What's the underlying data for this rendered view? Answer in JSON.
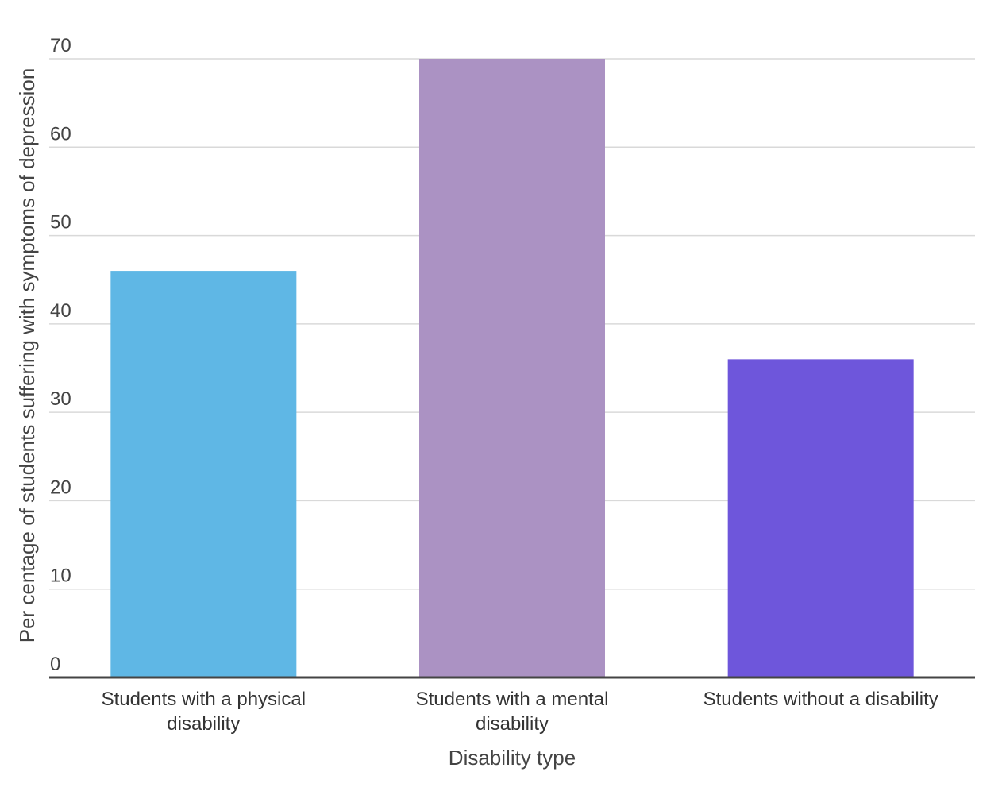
{
  "chart_data": {
    "type": "bar",
    "title": "",
    "xlabel": "Disability type",
    "ylabel": "Per centage of students suffering with symptoms of depression",
    "categories": [
      [
        "Students with a physical",
        "disability"
      ],
      [
        "Students with a mental",
        "disability"
      ],
      [
        "Students without a disability"
      ]
    ],
    "values": [
      46,
      70,
      36
    ],
    "colors": [
      "#5fb7e5",
      "#ab92c3",
      "#6e56db"
    ],
    "ylim": [
      0,
      70
    ],
    "yticks": [
      0,
      10,
      20,
      30,
      40,
      50,
      60,
      70
    ],
    "grid": true,
    "legend": "none"
  }
}
